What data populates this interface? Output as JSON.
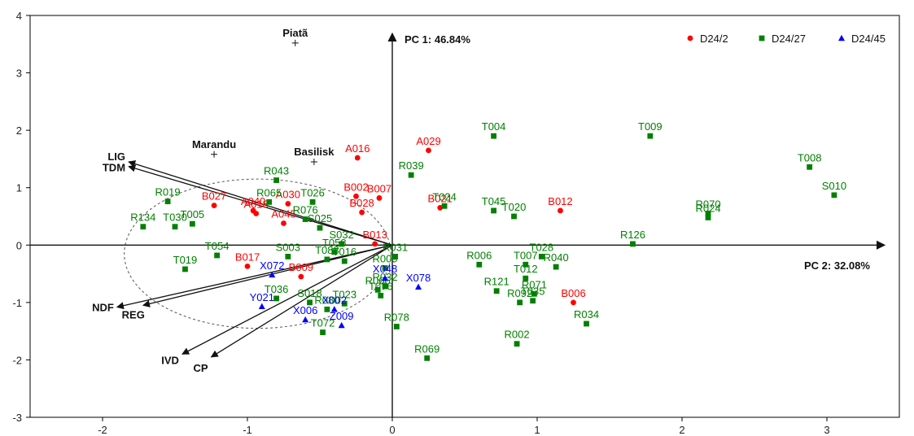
{
  "chart_data": {
    "type": "scatter",
    "xlim": [
      -2.5,
      3.5
    ],
    "ylim": [
      -3,
      4
    ],
    "x_ticks": [
      -2,
      -1,
      0,
      1,
      2,
      3
    ],
    "y_ticks": [
      -3,
      -2,
      -1,
      0,
      1,
      2,
      3,
      4
    ],
    "grid": false,
    "pc1_label": "PC 1: 46.84%",
    "pc2_label": "PC 2: 32.08%",
    "legend_position": "top-right",
    "series": [
      {
        "name": "D24/2",
        "color": "#ff0000",
        "marker": "circle",
        "points": [
          {
            "label": "A016",
            "x": -0.24,
            "y": 1.52
          },
          {
            "label": "A029",
            "x": 0.25,
            "y": 1.65
          },
          {
            "label": "B002",
            "x": -0.25,
            "y": 0.85
          },
          {
            "label": "B007",
            "x": -0.09,
            "y": 0.82
          },
          {
            "label": "B028",
            "x": -0.21,
            "y": 0.57
          },
          {
            "label": "B021",
            "x": 0.33,
            "y": 0.65
          },
          {
            "label": "B012",
            "x": 1.16,
            "y": 0.6
          },
          {
            "label": "B027",
            "x": -1.23,
            "y": 0.69
          },
          {
            "label": "A040",
            "x": -0.96,
            "y": 0.6
          },
          {
            "label": "A018",
            "x": -0.94,
            "y": 0.55
          },
          {
            "label": "A030",
            "x": -0.72,
            "y": 0.72
          },
          {
            "label": "A045",
            "x": -0.75,
            "y": 0.38
          },
          {
            "label": "B013",
            "x": -0.12,
            "y": 0.02
          },
          {
            "label": "B017",
            "x": -1.0,
            "y": -0.37
          },
          {
            "label": "B009",
            "x": -0.63,
            "y": -0.55
          },
          {
            "label": "B006",
            "x": 1.25,
            "y": -1.0
          }
        ]
      },
      {
        "name": "D24/27",
        "color": "#008000",
        "marker": "square",
        "points": [
          {
            "label": "T004",
            "x": 0.7,
            "y": 1.9
          },
          {
            "label": "T009",
            "x": 1.78,
            "y": 1.9
          },
          {
            "label": "T008",
            "x": 2.88,
            "y": 1.36
          },
          {
            "label": "S010",
            "x": 3.05,
            "y": 0.87
          },
          {
            "label": "R039",
            "x": 0.13,
            "y": 1.22
          },
          {
            "label": "R043",
            "x": -0.8,
            "y": 1.13
          },
          {
            "label": "R019",
            "x": -1.55,
            "y": 0.76
          },
          {
            "label": "T005",
            "x": -1.38,
            "y": 0.37
          },
          {
            "label": "R134",
            "x": -1.72,
            "y": 0.32
          },
          {
            "label": "T030",
            "x": -1.5,
            "y": 0.32
          },
          {
            "label": "R065",
            "x": -0.85,
            "y": 0.75
          },
          {
            "label": "T026",
            "x": -0.55,
            "y": 0.75
          },
          {
            "label": "R076",
            "x": -0.6,
            "y": 0.45
          },
          {
            "label": "S025",
            "x": -0.5,
            "y": 0.3
          },
          {
            "label": "T024",
            "x": 0.36,
            "y": 0.68
          },
          {
            "label": "T045",
            "x": 0.7,
            "y": 0.6
          },
          {
            "label": "T020",
            "x": 0.84,
            "y": 0.5
          },
          {
            "label": "R070",
            "x": 2.18,
            "y": 0.55
          },
          {
            "label": "R024",
            "x": 2.18,
            "y": 0.48
          },
          {
            "label": "R126",
            "x": 1.66,
            "y": 0.02
          },
          {
            "label": "T054",
            "x": -1.21,
            "y": -0.18
          },
          {
            "label": "T019",
            "x": -1.43,
            "y": -0.42
          },
          {
            "label": "S003",
            "x": -0.72,
            "y": -0.2
          },
          {
            "label": "S032",
            "x": -0.35,
            "y": 0.02
          },
          {
            "label": "T058",
            "x": -0.4,
            "y": -0.12
          },
          {
            "label": "T083",
            "x": -0.45,
            "y": -0.25
          },
          {
            "label": "T016",
            "x": -0.33,
            "y": -0.28
          },
          {
            "label": "R031",
            "x": 0.02,
            "y": -0.2
          },
          {
            "label": "R009",
            "x": -0.05,
            "y": -0.4
          },
          {
            "label": "R032",
            "x": -0.05,
            "y": -0.72
          },
          {
            "label": "R066",
            "x": -0.1,
            "y": -0.78
          },
          {
            "label": "T076",
            "x": -0.08,
            "y": -0.88
          },
          {
            "label": "R006",
            "x": 0.6,
            "y": -0.34
          },
          {
            "label": "T007",
            "x": 0.92,
            "y": -0.34
          },
          {
            "label": "T028",
            "x": 1.03,
            "y": -0.2
          },
          {
            "label": "T012",
            "x": 0.92,
            "y": -0.58
          },
          {
            "label": "R040",
            "x": 1.13,
            "y": -0.38
          },
          {
            "label": "R121",
            "x": 0.72,
            "y": -0.8
          },
          {
            "label": "R071",
            "x": 0.98,
            "y": -0.85
          },
          {
            "label": "R092",
            "x": 0.88,
            "y": -1.0
          },
          {
            "label": "T035",
            "x": 0.97,
            "y": -0.97
          },
          {
            "label": "R034",
            "x": 1.34,
            "y": -1.37
          },
          {
            "label": "T036",
            "x": -0.8,
            "y": -0.93
          },
          {
            "label": "S018",
            "x": -0.57,
            "y": -1.0
          },
          {
            "label": "T023",
            "x": -0.33,
            "y": -1.02
          },
          {
            "label": "R080",
            "x": -0.45,
            "y": -1.12
          },
          {
            "label": "T072",
            "x": -0.48,
            "y": -1.52
          },
          {
            "label": "R078",
            "x": 0.03,
            "y": -1.42
          },
          {
            "label": "R002",
            "x": 0.86,
            "y": -1.72
          },
          {
            "label": "R069",
            "x": 0.24,
            "y": -1.97
          }
        ]
      },
      {
        "name": "D24/45",
        "color": "#0000ff",
        "marker": "triangle",
        "points": [
          {
            "label": "X072",
            "x": -0.83,
            "y": -0.52
          },
          {
            "label": "X048",
            "x": -0.05,
            "y": -0.58
          },
          {
            "label": "X078",
            "x": 0.18,
            "y": -0.73
          },
          {
            "label": "Y021",
            "x": -0.9,
            "y": -1.07
          },
          {
            "label": "X006",
            "x": -0.6,
            "y": -1.3
          },
          {
            "label": "Z009",
            "x": -0.35,
            "y": -1.4
          },
          {
            "label": "X002",
            "x": -0.4,
            "y": -1.12
          }
        ]
      }
    ],
    "supplementary": [
      {
        "label": "Piatã",
        "x": -0.67,
        "y": 3.52
      },
      {
        "label": "Marandu",
        "x": -1.23,
        "y": 1.58
      },
      {
        "label": "Basilisk",
        "x": -0.54,
        "y": 1.45
      }
    ],
    "variables": [
      {
        "label": "LIG",
        "x": -1.82,
        "y": 1.45
      },
      {
        "label": "TDM",
        "x": -1.82,
        "y": 1.37
      },
      {
        "label": "NDF",
        "x": -1.9,
        "y": -1.08
      },
      {
        "label": "REG",
        "x": -1.72,
        "y": -1.05
      },
      {
        "label": "IVD",
        "x": -1.45,
        "y": -1.9
      },
      {
        "label": "CP",
        "x": -1.25,
        "y": -1.95
      }
    ],
    "ellipse": {
      "cx": -0.93,
      "cy": -0.15,
      "rx": 0.92,
      "ry": 1.3
    }
  }
}
